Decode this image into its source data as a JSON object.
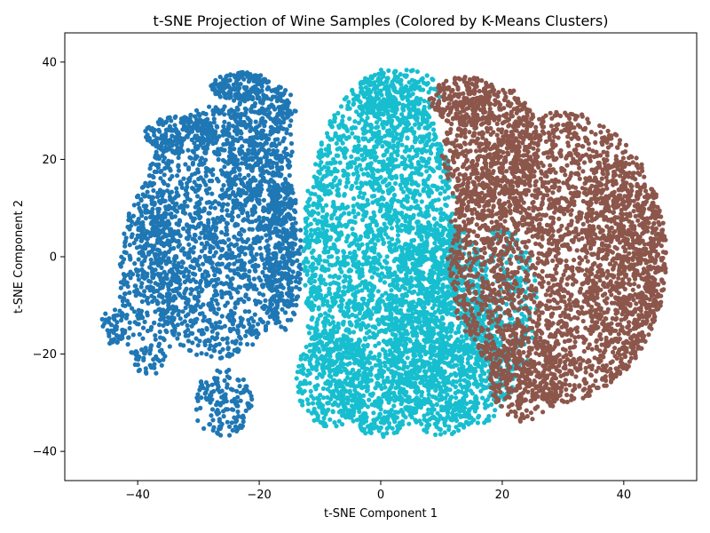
{
  "chart_data": {
    "type": "scatter",
    "title": "t-SNE Projection of Wine Samples (Colored by K-Means Clusters)",
    "xlabel": "t-SNE Component 1",
    "ylabel": "t-SNE Component 2",
    "xlim": [
      -52,
      52
    ],
    "ylim": [
      -46,
      46
    ],
    "xticks": [
      -40,
      -20,
      0,
      20,
      40
    ],
    "yticks": [
      -40,
      -20,
      0,
      20,
      40
    ],
    "xtick_labels": [
      "−40",
      "−20",
      "0",
      "20",
      "40"
    ],
    "ytick_labels": [
      "−40",
      "−20",
      "0",
      "20",
      "40"
    ],
    "grid": false,
    "legend": "none",
    "series": [
      {
        "color": "#1f77b4",
        "regions": [
          {
            "cx": -27,
            "cy": 5,
            "rx": 13,
            "ry": 26,
            "n": 1600
          },
          {
            "cx": -38,
            "cy": -5,
            "rx": 5,
            "ry": 20,
            "n": 350
          },
          {
            "cx": -20,
            "cy": 20,
            "rx": 6,
            "ry": 14,
            "n": 300
          },
          {
            "cx": -23,
            "cy": 35,
            "rx": 5,
            "ry": 3,
            "n": 160
          },
          {
            "cx": -17,
            "cy": 30,
            "rx": 3,
            "ry": 5,
            "n": 90
          },
          {
            "cx": -33,
            "cy": 25,
            "rx": 6,
            "ry": 4,
            "n": 150
          },
          {
            "cx": -26,
            "cy": -30,
            "rx": 5,
            "ry": 7,
            "n": 150
          },
          {
            "cx": -44,
            "cy": -14,
            "rx": 2,
            "ry": 4,
            "n": 50
          },
          {
            "cx": -16,
            "cy": 0,
            "rx": 3,
            "ry": 16,
            "n": 260
          }
        ]
      },
      {
        "color": "#17becf",
        "regions": [
          {
            "cx": 0,
            "cy": 0,
            "rx": 13,
            "ry": 37,
            "n": 2800
          },
          {
            "cx": 10,
            "cy": -15,
            "rx": 9,
            "ry": 22,
            "n": 900
          },
          {
            "cx": -8,
            "cy": -25,
            "rx": 6,
            "ry": 10,
            "n": 300
          },
          {
            "cx": 15,
            "cy": -25,
            "rx": 7,
            "ry": 10,
            "n": 280
          },
          {
            "cx": 3,
            "cy": 33,
            "rx": 7,
            "ry": 6,
            "n": 200
          },
          {
            "cx": 20,
            "cy": -10,
            "rx": 6,
            "ry": 16,
            "n": 250
          }
        ]
      },
      {
        "color": "#8c564b",
        "regions": [
          {
            "cx": 29,
            "cy": 0,
            "rx": 18,
            "ry": 30,
            "n": 2600
          },
          {
            "cx": 18,
            "cy": 22,
            "rx": 8,
            "ry": 14,
            "n": 550
          },
          {
            "cx": 40,
            "cy": 0,
            "rx": 7,
            "ry": 20,
            "n": 450
          },
          {
            "cx": 24,
            "cy": -25,
            "rx": 6,
            "ry": 9,
            "n": 250
          },
          {
            "cx": 14,
            "cy": 32,
            "rx": 6,
            "ry": 5,
            "n": 200
          }
        ]
      }
    ]
  }
}
